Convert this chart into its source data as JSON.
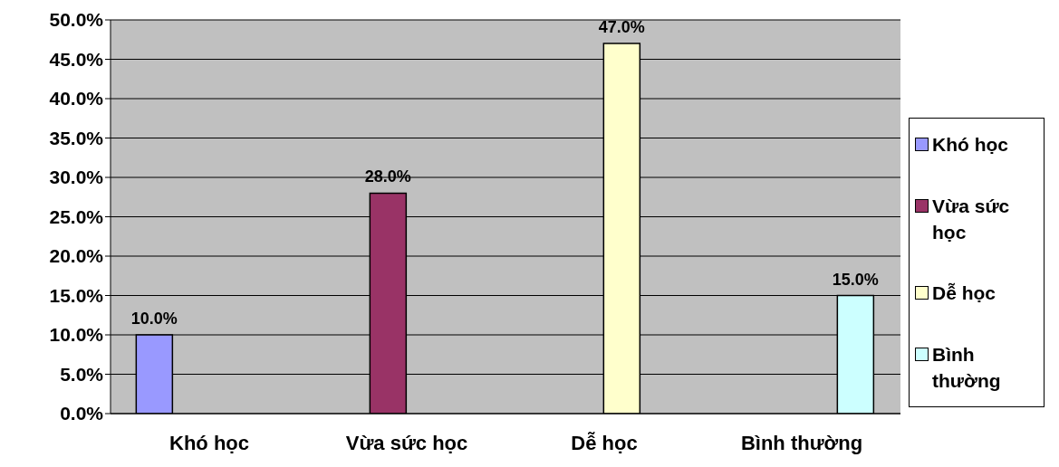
{
  "chart_data": {
    "type": "bar",
    "categories": [
      "Khó học",
      "Vừa sức học",
      "Dễ học",
      "Bình thường"
    ],
    "series": [
      {
        "name": "Khó học",
        "color": "#9999ff",
        "values": [
          10,
          null,
          null,
          null
        ],
        "value_labels": [
          "10.0%",
          null,
          null,
          null
        ]
      },
      {
        "name": "Vừa sức học",
        "color": "#993366",
        "values": [
          null,
          28,
          null,
          null
        ],
        "value_labels": [
          null,
          "28.0%",
          null,
          null
        ]
      },
      {
        "name": "Dễ học",
        "color": "#ffffcc",
        "values": [
          null,
          null,
          47,
          null
        ],
        "value_labels": [
          null,
          null,
          "47.0%",
          null
        ]
      },
      {
        "name": "Bình thường",
        "color": "#ccffff",
        "values": [
          null,
          null,
          null,
          15
        ],
        "value_labels": [
          null,
          null,
          null,
          "15.0%"
        ]
      }
    ],
    "ylim": [
      0,
      50
    ],
    "yticks": [
      {
        "value": 0,
        "label": "0.0%"
      },
      {
        "value": 5,
        "label": "5.0%"
      },
      {
        "value": 10,
        "label": "10.0%"
      },
      {
        "value": 15,
        "label": "15.0%"
      },
      {
        "value": 20,
        "label": "20.0%"
      },
      {
        "value": 25,
        "label": "25.0%"
      },
      {
        "value": 30,
        "label": "30.0%"
      },
      {
        "value": 35,
        "label": "35.0%"
      },
      {
        "value": 40,
        "label": "40.0%"
      },
      {
        "value": 45,
        "label": "45.0%"
      },
      {
        "value": 50,
        "label": "50.0%"
      }
    ],
    "grid": "y",
    "legend": "right"
  }
}
